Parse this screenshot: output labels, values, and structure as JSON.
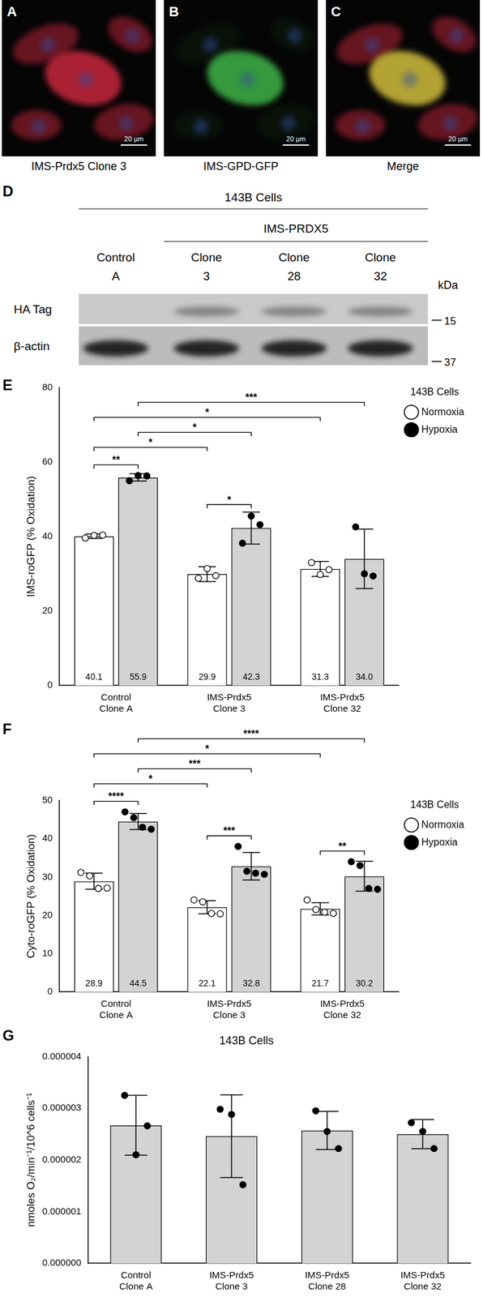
{
  "images": {
    "scale_bar": "20 µm",
    "panels": [
      {
        "panel": "A",
        "label": "IMS-Prdx5 Clone 3",
        "color": "#c8283c"
      },
      {
        "panel": "B",
        "label": "IMS-GPD-GFP",
        "color": "#3cb446"
      },
      {
        "panel": "C",
        "label": "Merge",
        "color": "#d2be3c"
      }
    ]
  },
  "blot": {
    "panel": "D",
    "title": "143B Cells",
    "group": {
      "label": "IMS-PRDX5",
      "lanes": [
        "Clone 3",
        "Clone 28",
        "Clone 32"
      ]
    },
    "lanes": [
      {
        "label": "Control A",
        "bands": [
          "β-actin"
        ]
      },
      {
        "label": "Clone 3",
        "bands": [
          "HA Tag",
          "β-actin"
        ]
      },
      {
        "label": "Clone 28",
        "bands": [
          "HA Tag",
          "β-actin"
        ]
      },
      {
        "label": "Clone 32",
        "bands": [
          "HA Tag",
          "β-actin"
        ]
      }
    ],
    "rows": [
      "HA Tag",
      "β-actin"
    ],
    "unit": "kDa",
    "markers": [
      15,
      37
    ]
  },
  "chart_data": [
    {
      "panel": "E",
      "type": "bar",
      "categories": [
        "Control Clone A",
        "IMS-Prdx5 Clone 3",
        "IMS-Prdx5 Clone 32"
      ],
      "y_label": "IMS-roGFP (% Oxidation)",
      "ylim": [
        0,
        80
      ],
      "yticks": [
        0,
        20,
        40,
        60,
        80
      ],
      "grid": false,
      "legend": "right",
      "legend_title": "143B Cells",
      "data_labels": true,
      "series": [
        {
          "name": "Normoxia",
          "color": "#ffffff",
          "marker": "open_circle",
          "values": [
            40.1,
            29.9,
            31.3
          ],
          "errors": [
            0.6,
            2.0,
            2.0
          ],
          "points": [
            [
              39.6,
              40.3,
              40.4
            ],
            [
              28.8,
              31.4,
              29.5
            ],
            [
              33.0,
              29.8,
              31.1
            ]
          ]
        },
        {
          "name": "Hypoxia",
          "color": "#d3d3d3",
          "marker": "filled_circle",
          "values": [
            55.9,
            42.3,
            34.0
          ],
          "value_labels": [
            "55.9",
            "42.3",
            "34.0"
          ],
          "errors": [
            1.0,
            4.3,
            8.0
          ],
          "points": [
            [
              55.0,
              56.4,
              56.3
            ],
            [
              38.2,
              45.5,
              43.2
            ],
            [
              42.6,
              30.0,
              29.4
            ]
          ]
        }
      ],
      "comparisons": [
        {
          "between": [
            [
              "Control Clone A",
              "Normoxia"
            ],
            [
              "Control Clone A",
              "Hypoxia"
            ]
          ],
          "label": "**"
        },
        {
          "between": [
            [
              "IMS-Prdx5 Clone 3",
              "Normoxia"
            ],
            [
              "IMS-Prdx5 Clone 3",
              "Hypoxia"
            ]
          ],
          "label": "*"
        },
        {
          "between": [
            [
              "Control Clone A",
              "Normoxia"
            ],
            [
              "IMS-Prdx5 Clone 3",
              "Normoxia"
            ]
          ],
          "label": "*"
        },
        {
          "between": [
            [
              "Control Clone A",
              "Hypoxia"
            ],
            [
              "IMS-Prdx5 Clone 3",
              "Hypoxia"
            ]
          ],
          "label": "*"
        },
        {
          "between": [
            [
              "Control Clone A",
              "Normoxia"
            ],
            [
              "IMS-Prdx5 Clone 32",
              "Normoxia"
            ]
          ],
          "label": "*"
        },
        {
          "between": [
            [
              "Control Clone A",
              "Hypoxia"
            ],
            [
              "IMS-Prdx5 Clone 32",
              "Hypoxia"
            ]
          ],
          "label": "***"
        }
      ]
    },
    {
      "panel": "F",
      "type": "bar",
      "categories": [
        "Control Clone A",
        "IMS-Prdx5 Clone 3",
        "IMS-Prdx5 Clone 32"
      ],
      "y_label": "Cyto-roGFP (% Oxidation)",
      "ylim": [
        0,
        50
      ],
      "yticks": [
        0,
        10,
        20,
        30,
        40,
        50
      ],
      "grid": false,
      "legend": "right",
      "legend_title": "143B Cells",
      "data_labels": true,
      "series": [
        {
          "name": "Normoxia",
          "color": "#ffffff",
          "marker": "open_circle",
          "values": [
            28.9,
            22.1,
            21.7
          ],
          "errors": [
            2.1,
            1.7,
            1.6
          ],
          "points": [
            [
              31.2,
              30.3,
              27.0,
              27.1
            ],
            [
              24.0,
              23.5,
              20.5,
              20.4
            ],
            [
              24.0,
              21.5,
              20.8,
              20.5
            ]
          ]
        },
        {
          "name": "Hypoxia",
          "color": "#d3d3d3",
          "marker": "filled_circle",
          "values": [
            44.5,
            32.8,
            30.2
          ],
          "errors": [
            2.1,
            3.6,
            3.9
          ],
          "points": [
            [
              47.0,
              45.5,
              43.0,
              42.5
            ],
            [
              38.0,
              31.5,
              31.0,
              30.7
            ],
            [
              34.0,
              33.0,
              27.0,
              26.8
            ]
          ]
        }
      ],
      "comparisons": [
        {
          "between": [
            [
              "Control Clone A",
              "Normoxia"
            ],
            [
              "Control Clone A",
              "Hypoxia"
            ]
          ],
          "label": "****"
        },
        {
          "between": [
            [
              "IMS-Prdx5 Clone 3",
              "Normoxia"
            ],
            [
              "IMS-Prdx5 Clone 3",
              "Hypoxia"
            ]
          ],
          "label": "***"
        },
        {
          "between": [
            [
              "IMS-Prdx5 Clone 32",
              "Normoxia"
            ],
            [
              "IMS-Prdx5 Clone 32",
              "Hypoxia"
            ]
          ],
          "label": "**"
        },
        {
          "between": [
            [
              "Control Clone A",
              "Normoxia"
            ],
            [
              "IMS-Prdx5 Clone 3",
              "Normoxia"
            ]
          ],
          "label": "*"
        },
        {
          "between": [
            [
              "Control Clone A",
              "Hypoxia"
            ],
            [
              "IMS-Prdx5 Clone 3",
              "Hypoxia"
            ]
          ],
          "label": "***"
        },
        {
          "between": [
            [
              "Control Clone A",
              "Normoxia"
            ],
            [
              "IMS-Prdx5 Clone 32",
              "Normoxia"
            ]
          ],
          "label": "*"
        },
        {
          "between": [
            [
              "Control Clone A",
              "Hypoxia"
            ],
            [
              "IMS-Prdx5 Clone 32",
              "Hypoxia"
            ]
          ],
          "label": "****"
        }
      ]
    },
    {
      "panel": "G",
      "type": "bar",
      "title": "143B Cells",
      "categories": [
        "Control Clone A",
        "IMS-Prdx5 Clone 3",
        "IMS-Prdx5 Clone 28",
        "IMS-Prdx5 Clone 32"
      ],
      "y_label": "nmoles O₂/min⁻¹/10^6 cells⁻¹",
      "ylim": [
        0,
        4e-06
      ],
      "yticks": [
        {
          "value": 0,
          "label": "0.000000"
        },
        {
          "value": 1e-06,
          "label": "0.000001"
        },
        {
          "value": 2e-06,
          "label": "0.000002"
        },
        {
          "value": 3e-06,
          "label": "0.000003"
        },
        {
          "value": 4e-06,
          "label": "0.000004"
        }
      ],
      "grid": false,
      "color": "#d3d3d3",
      "marker": "filled_circle",
      "values": [
        2.67e-06,
        2.46e-06,
        2.57e-06,
        2.5e-06
      ],
      "errors": [
        5.8e-07,
        8e-07,
        3.7e-07,
        2.8e-07
      ],
      "points": [
        [
          3.25e-06,
          2.1e-06,
          2.66e-06
        ],
        [
          2.98e-06,
          2.88e-06,
          1.52e-06
        ],
        [
          2.95e-06,
          2.55e-06,
          2.22e-06
        ],
        [
          2.72e-06,
          2.55e-06,
          2.22e-06
        ]
      ]
    }
  ]
}
